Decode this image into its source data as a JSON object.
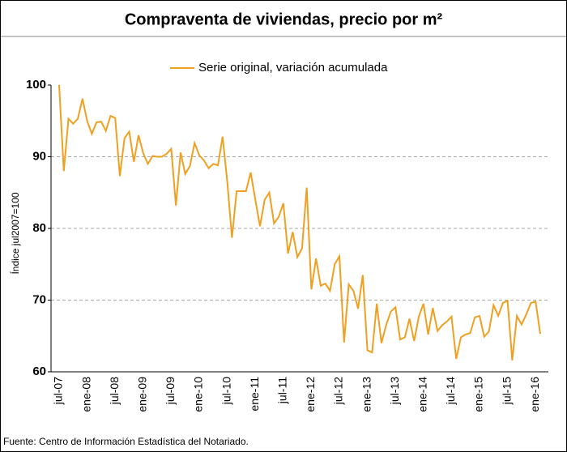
{
  "chart_data": {
    "type": "line",
    "title": "Compraventa de viviendas, precio por m²",
    "y_label": "Índice jul2007=100",
    "source": "Fuente: Centro de Información Estadística del Notariado.",
    "categories": [
      "jul-07",
      null,
      null,
      null,
      null,
      null,
      "ene-08",
      null,
      null,
      null,
      null,
      null,
      "jul-08",
      null,
      null,
      null,
      null,
      null,
      "ene-09",
      null,
      null,
      null,
      null,
      null,
      "jul-09",
      null,
      null,
      null,
      null,
      null,
      "ene-10",
      null,
      null,
      null,
      null,
      null,
      "jul-10",
      null,
      null,
      null,
      null,
      null,
      "ene-11",
      null,
      null,
      null,
      null,
      null,
      "jul-11",
      null,
      null,
      null,
      null,
      null,
      "ene-12",
      null,
      null,
      null,
      null,
      null,
      "jul-12",
      null,
      null,
      null,
      null,
      null,
      "ene-13",
      null,
      null,
      null,
      null,
      null,
      "jul-13",
      null,
      null,
      null,
      null,
      null,
      "ene-14",
      null,
      null,
      null,
      null,
      null,
      "jul-14",
      null,
      null,
      null,
      null,
      null,
      "ene-15",
      null,
      null,
      null,
      null,
      null,
      "jul-15",
      null,
      null,
      null,
      null,
      null,
      "ene-16",
      null
    ],
    "series": [
      {
        "name": "Serie original, variación acumulada",
        "color": "#f0a020",
        "values": [
          100,
          88,
          95.3,
          94.6,
          95.3,
          98.1,
          95,
          93.2,
          94.8,
          94.9,
          93.6,
          95.7,
          95.4,
          87.3,
          92.6,
          93.5,
          89.3,
          93,
          90.5,
          89,
          90.1,
          90,
          90,
          90.4,
          91.1,
          83.2,
          90.6,
          87.6,
          88.7,
          91.9,
          90.2,
          89.5,
          88.4,
          89,
          88.8,
          92.8,
          86.5,
          78.7,
          85.2,
          85.2,
          85.2,
          87.8,
          84,
          80.3,
          84,
          85,
          80.7,
          81.6,
          83.5,
          76.5,
          79.5,
          76,
          77.2,
          85.7,
          71.5,
          75.8,
          72,
          72.3,
          71.3,
          75,
          76.1,
          64.1,
          72.2,
          71.3,
          68.8,
          73.5,
          63,
          62.7,
          69.5,
          64,
          66.5,
          68.4,
          69,
          64.5,
          64.8,
          67.4,
          64.3,
          67.7,
          69.5,
          65.2,
          68.9,
          65.7,
          66.5,
          67,
          67.7,
          61.8,
          64.8,
          65.2,
          65.4,
          67.6,
          67.8,
          64.9,
          65.6,
          69.3,
          67.8,
          69.6,
          69.9,
          61.6,
          67.8,
          66.6,
          68,
          69.6,
          69.8,
          65.3
        ]
      }
    ],
    "ylim": [
      60,
      100
    ],
    "yticks": [
      60,
      70,
      80,
      90,
      100
    ],
    "grid": true,
    "legend": "top"
  }
}
